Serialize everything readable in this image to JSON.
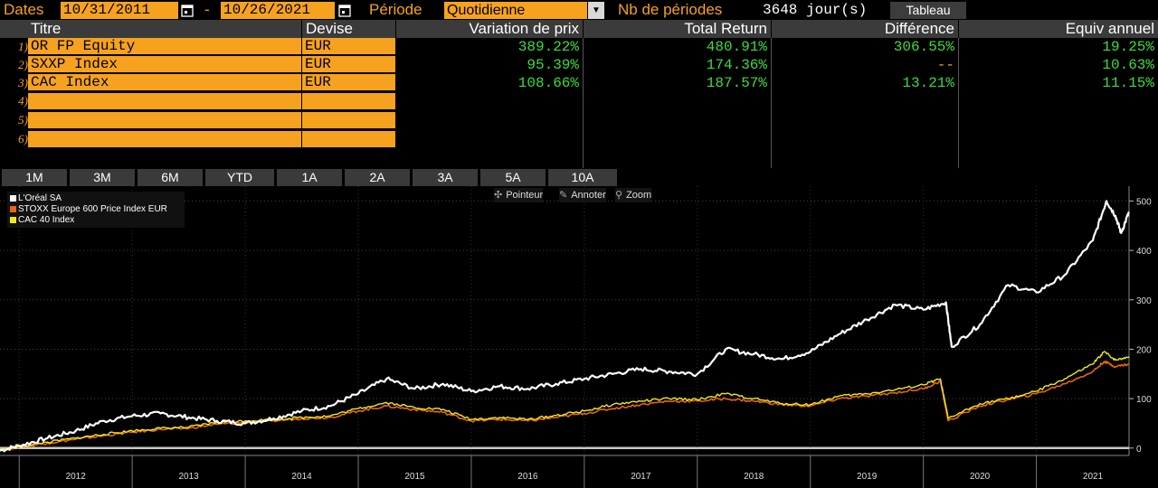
{
  "toolbar": {
    "dates_label": "Dates",
    "start_date": "10/31/2011",
    "dash": "-",
    "end_date": "10/26/2021",
    "period_label": "Période",
    "period_value": "Quotidienne",
    "nb_label": "Nb de périodes",
    "nb_value": "3648 jour(s)",
    "table_button": "Tableau"
  },
  "table": {
    "headers": {
      "titre": "Titre",
      "devise": "Devise",
      "variation": "Variation de prix",
      "total": "Total Return",
      "difference": "Différence",
      "equiv": "Equiv annuel"
    },
    "rows": [
      {
        "num": "1)",
        "titre": "OR FP Equity",
        "devise": "EUR",
        "variation": "389.22%",
        "total": "480.91%",
        "difference": "306.55%",
        "equiv": "19.25%"
      },
      {
        "num": "2)",
        "titre": "SXXP Index",
        "devise": "EUR",
        "variation": "95.39%",
        "total": "174.36%",
        "difference": "--",
        "equiv": "10.63%"
      },
      {
        "num": "3)",
        "titre": "CAC Index",
        "devise": "EUR",
        "variation": "108.66%",
        "total": "187.57%",
        "difference": "13.21%",
        "equiv": "11.15%"
      },
      {
        "num": "4)",
        "titre": "",
        "devise": "",
        "variation": "",
        "total": "",
        "difference": "",
        "equiv": ""
      },
      {
        "num": "5)",
        "titre": "",
        "devise": "",
        "variation": "",
        "total": "",
        "difference": "",
        "equiv": ""
      },
      {
        "num": "6)",
        "titre": "",
        "devise": "",
        "variation": "",
        "total": "",
        "difference": "",
        "equiv": ""
      }
    ]
  },
  "periods": [
    "1M",
    "3M",
    "6M",
    "YTD",
    "1A",
    "2A",
    "3A",
    "5A",
    "10A"
  ],
  "chart_tools": {
    "pointer": "Pointeur",
    "annotate": "Annoter",
    "zoom": "Zoom"
  },
  "colors": {
    "accent": "#f7a21e",
    "positive": "#3ddc3d",
    "header_bg": "#3b3b3b"
  },
  "chart_data": {
    "type": "line",
    "legend_position": "top-left",
    "grid": true,
    "yticks": [
      0,
      100,
      200,
      300,
      400,
      500
    ],
    "ylim": [
      -15,
      530
    ],
    "xlim": [
      2011.83,
      2021.82
    ],
    "xticks": [
      "2012",
      "2013",
      "2014",
      "2015",
      "2016",
      "2017",
      "2018",
      "2019",
      "2020",
      "2021"
    ],
    "series": [
      {
        "name": "L'Oréal SA",
        "color": "#ffffff",
        "x": [
          2011.83,
          2012.0,
          2012.25,
          2012.5,
          2012.75,
          2013.0,
          2013.25,
          2013.5,
          2013.75,
          2014.0,
          2014.25,
          2014.5,
          2014.75,
          2015.0,
          2015.25,
          2015.5,
          2015.75,
          2016.0,
          2016.25,
          2016.5,
          2016.75,
          2017.0,
          2017.25,
          2017.5,
          2017.75,
          2018.0,
          2018.25,
          2018.5,
          2018.75,
          2019.0,
          2019.25,
          2019.5,
          2019.75,
          2020.0,
          2020.2,
          2020.25,
          2020.5,
          2020.75,
          2021.0,
          2021.25,
          2021.5,
          2021.62,
          2021.7,
          2021.75,
          2021.82
        ],
        "y": [
          -5,
          5,
          20,
          35,
          55,
          65,
          70,
          62,
          55,
          50,
          60,
          75,
          85,
          110,
          140,
          120,
          130,
          115,
          125,
          120,
          130,
          140,
          150,
          160,
          155,
          150,
          200,
          190,
          180,
          195,
          230,
          260,
          290,
          280,
          295,
          205,
          250,
          330,
          315,
          350,
          420,
          500,
          470,
          435,
          478
        ]
      },
      {
        "name": "STOXX Europe 600 Price Index EUR",
        "color": "#e8641b",
        "x": [
          2011.83,
          2012.0,
          2012.25,
          2012.5,
          2012.75,
          2013.0,
          2013.25,
          2013.5,
          2013.75,
          2014.0,
          2014.25,
          2014.5,
          2014.75,
          2015.0,
          2015.25,
          2015.5,
          2015.75,
          2016.0,
          2016.25,
          2016.5,
          2016.75,
          2017.0,
          2017.25,
          2017.5,
          2017.75,
          2018.0,
          2018.25,
          2018.5,
          2018.75,
          2019.0,
          2019.25,
          2019.5,
          2019.75,
          2020.0,
          2020.15,
          2020.22,
          2020.5,
          2020.75,
          2021.0,
          2021.25,
          2021.5,
          2021.6,
          2021.7,
          2021.82
        ],
        "y": [
          -3,
          2,
          10,
          18,
          25,
          32,
          38,
          40,
          48,
          52,
          55,
          60,
          62,
          75,
          85,
          78,
          72,
          55,
          58,
          55,
          62,
          70,
          80,
          88,
          95,
          95,
          100,
          95,
          88,
          85,
          100,
          105,
          112,
          120,
          135,
          55,
          85,
          98,
          110,
          130,
          155,
          175,
          165,
          170
        ]
      },
      {
        "name": "CAC 40 Index",
        "color": "#f0e91b",
        "x": [
          2011.83,
          2012.0,
          2012.25,
          2012.5,
          2012.75,
          2013.0,
          2013.25,
          2013.5,
          2013.75,
          2014.0,
          2014.25,
          2014.5,
          2014.75,
          2015.0,
          2015.25,
          2015.5,
          2015.75,
          2016.0,
          2016.25,
          2016.5,
          2016.75,
          2017.0,
          2017.25,
          2017.5,
          2017.75,
          2018.0,
          2018.25,
          2018.5,
          2018.75,
          2019.0,
          2019.25,
          2019.5,
          2019.75,
          2020.0,
          2020.15,
          2020.22,
          2020.5,
          2020.75,
          2021.0,
          2021.25,
          2021.5,
          2021.6,
          2021.7,
          2021.82
        ],
        "y": [
          -4,
          3,
          12,
          20,
          28,
          35,
          40,
          42,
          52,
          55,
          58,
          62,
          65,
          80,
          92,
          82,
          78,
          58,
          62,
          58,
          66,
          75,
          88,
          95,
          100,
          98,
          110,
          100,
          90,
          88,
          105,
          110,
          118,
          128,
          140,
          60,
          90,
          100,
          115,
          140,
          170,
          195,
          178,
          185
        ]
      }
    ]
  }
}
